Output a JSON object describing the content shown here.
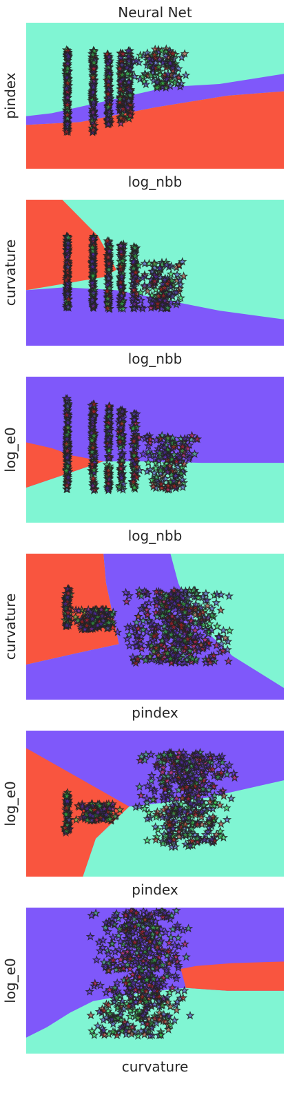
{
  "title": "Neural Net",
  "colors": {
    "class_red": "#f9553f",
    "class_violet": "#7f58fa",
    "class_aqua": "#80f5d3",
    "marker_edge": "#222222",
    "dot_green": "#37d24b",
    "dot_red": "#d21e1e",
    "dot_violet": "#5a28be"
  },
  "chart_data": [
    {
      "type": "scatter",
      "xlabel": "log_nbb",
      "ylabel": "pindex",
      "marker": "star",
      "ticks_visible": false,
      "regions": [
        {
          "class": "violet",
          "polygon": [
            [
              0,
              0.3
            ],
            [
              0.21,
              0.32
            ],
            [
              0.5,
              0.42
            ],
            [
              0.78,
              0.5
            ],
            [
              1,
              0.53
            ],
            [
              1,
              0.65
            ],
            [
              0.75,
              0.58
            ],
            [
              0.55,
              0.56
            ],
            [
              0.3,
              0.46
            ],
            [
              0.1,
              0.38
            ],
            [
              0,
              0.36
            ]
          ]
        },
        {
          "class": "red",
          "polygon": [
            [
              0,
              0
            ],
            [
              1,
              0
            ],
            [
              1,
              0.53
            ],
            [
              0.78,
              0.5
            ],
            [
              0.5,
              0.42
            ],
            [
              0.21,
              0.32
            ],
            [
              0,
              0.3
            ]
          ]
        }
      ],
      "region_background": "aqua",
      "clusters": [
        {
          "x": 0.16,
          "spread_x": 0.005,
          "y_range": [
            0.25,
            0.82
          ],
          "count": 130
        },
        {
          "x": 0.26,
          "spread_x": 0.006,
          "y_range": [
            0.25,
            0.81
          ],
          "count": 110
        },
        {
          "x": 0.32,
          "spread_x": 0.006,
          "y_range": [
            0.3,
            0.8
          ],
          "count": 100
        },
        {
          "x": 0.37,
          "spread_x": 0.008,
          "y_range": [
            0.3,
            0.8
          ],
          "count": 90
        },
        {
          "x": 0.4,
          "spread_x": 0.008,
          "y_range": [
            0.34,
            0.81
          ],
          "count": 80
        },
        {
          "x": 0.52,
          "spread_x": 0.09,
          "y_range": [
            0.55,
            0.82
          ],
          "count": 120
        }
      ]
    },
    {
      "type": "scatter",
      "xlabel": "log_nbb",
      "ylabel": "curvature",
      "marker": "star",
      "ticks_visible": false,
      "regions": [
        {
          "class": "red",
          "polygon": [
            [
              0,
              1
            ],
            [
              0.14,
              1
            ],
            [
              0.28,
              0.75
            ],
            [
              0.35,
              0.52
            ],
            [
              0.3,
              0.47
            ],
            [
              0,
              0.38
            ]
          ]
        },
        {
          "class": "violet",
          "polygon": [
            [
              0,
              0
            ],
            [
              1,
              0
            ],
            [
              1,
              0.18
            ],
            [
              0.75,
              0.24
            ],
            [
              0.55,
              0.31
            ],
            [
              0.35,
              0.38
            ],
            [
              0.15,
              0.4
            ],
            [
              0,
              0.38
            ]
          ]
        }
      ],
      "region_background": "aqua",
      "clusters": [
        {
          "x": 0.16,
          "spread_x": 0.005,
          "y_range": [
            0.25,
            0.75
          ],
          "count": 110
        },
        {
          "x": 0.26,
          "spread_x": 0.006,
          "y_range": [
            0.25,
            0.75
          ],
          "count": 100
        },
        {
          "x": 0.32,
          "spread_x": 0.006,
          "y_range": [
            0.25,
            0.73
          ],
          "count": 90
        },
        {
          "x": 0.37,
          "spread_x": 0.008,
          "y_range": [
            0.25,
            0.7
          ],
          "count": 80
        },
        {
          "x": 0.42,
          "spread_x": 0.008,
          "y_range": [
            0.25,
            0.68
          ],
          "count": 70
        },
        {
          "x": 0.52,
          "spread_x": 0.09,
          "y_range": [
            0.25,
            0.58
          ],
          "count": 140
        }
      ]
    },
    {
      "type": "scatter",
      "xlabel": "log_nbb",
      "ylabel": "log_e0",
      "marker": "star",
      "ticks_visible": false,
      "regions": [
        {
          "class": "red",
          "polygon": [
            [
              0,
              0.55
            ],
            [
              0.1,
              0.51
            ],
            [
              0.18,
              0.46
            ],
            [
              0.3,
              0.42
            ],
            [
              0,
              0.24
            ]
          ]
        }
      ],
      "region_background_top": "violet",
      "region_background_bottom": "aqua",
      "boundary": [
        [
          0,
          0.24
        ],
        [
          0.3,
          0.42
        ],
        [
          0.45,
          0.42
        ],
        [
          0.68,
          0.41
        ],
        [
          1,
          0.41
        ]
      ],
      "clusters": [
        {
          "x": 0.16,
          "spread_x": 0.005,
          "y_range": [
            0.22,
            0.85
          ],
          "count": 130
        },
        {
          "x": 0.26,
          "spread_x": 0.006,
          "y_range": [
            0.22,
            0.83
          ],
          "count": 110
        },
        {
          "x": 0.32,
          "spread_x": 0.006,
          "y_range": [
            0.22,
            0.8
          ],
          "count": 100
        },
        {
          "x": 0.37,
          "spread_x": 0.008,
          "y_range": [
            0.22,
            0.78
          ],
          "count": 90
        },
        {
          "x": 0.42,
          "spread_x": 0.008,
          "y_range": [
            0.22,
            0.75
          ],
          "count": 70
        },
        {
          "x": 0.55,
          "spread_x": 0.1,
          "y_range": [
            0.22,
            0.6
          ],
          "count": 160
        }
      ]
    },
    {
      "type": "scatter",
      "xlabel": "pindex",
      "ylabel": "curvature",
      "marker": "star",
      "ticks_visible": false,
      "regions": [
        {
          "class": "red",
          "polygon": [
            [
              0,
              1
            ],
            [
              0.3,
              1
            ],
            [
              0.31,
              0.8
            ],
            [
              0.34,
              0.55
            ],
            [
              0.36,
              0.38
            ],
            [
              0.2,
              0.32
            ],
            [
              0,
              0.24
            ]
          ]
        },
        {
          "class": "violet",
          "polygon": [
            [
              0.3,
              1
            ],
            [
              0.56,
              1
            ],
            [
              0.59,
              0.8
            ],
            [
              0.65,
              0.55
            ],
            [
              0.8,
              0.3
            ],
            [
              1,
              0.08
            ],
            [
              1,
              0
            ],
            [
              0,
              0
            ],
            [
              0,
              0.24
            ],
            [
              0.2,
              0.32
            ],
            [
              0.36,
              0.38
            ],
            [
              0.34,
              0.55
            ],
            [
              0.31,
              0.8
            ]
          ]
        }
      ],
      "region_background": "aqua",
      "clusters": [
        {
          "x": 0.16,
          "spread_x": 0.01,
          "y_range": [
            0.5,
            0.76
          ],
          "count": 70
        },
        {
          "x": 0.27,
          "spread_x": 0.08,
          "y_range": [
            0.48,
            0.62
          ],
          "count": 140
        },
        {
          "x": 0.58,
          "spread_x": 0.18,
          "y_range": [
            0.25,
            0.75
          ],
          "count": 420
        }
      ]
    },
    {
      "type": "scatter",
      "xlabel": "pindex",
      "ylabel": "log_e0",
      "marker": "star",
      "ticks_visible": false,
      "regions": [
        {
          "class": "red",
          "polygon": [
            [
              0,
              0.88
            ],
            [
              0.2,
              0.68
            ],
            [
              0.4,
              0.48
            ],
            [
              0.27,
              0.26
            ],
            [
              0.22,
              0
            ],
            [
              0,
              0
            ]
          ]
        },
        {
          "class": "aqua",
          "polygon": [
            [
              0.22,
              0
            ],
            [
              1,
              0
            ],
            [
              1,
              0.66
            ],
            [
              0.7,
              0.54
            ],
            [
              0.4,
              0.48
            ],
            [
              0.27,
              0.26
            ]
          ]
        }
      ],
      "region_background": "violet",
      "clusters": [
        {
          "x": 0.16,
          "spread_x": 0.01,
          "y_range": [
            0.3,
            0.58
          ],
          "count": 70
        },
        {
          "x": 0.28,
          "spread_x": 0.08,
          "y_range": [
            0.38,
            0.5
          ],
          "count": 120
        },
        {
          "x": 0.62,
          "spread_x": 0.16,
          "y_range": [
            0.2,
            0.85
          ],
          "count": 420
        }
      ]
    },
    {
      "type": "scatter",
      "xlabel": "curvature",
      "ylabel": "log_e0",
      "marker": "star",
      "ticks_visible": false,
      "regions": [
        {
          "class": "red",
          "polygon": [
            [
              0.6,
              0.58
            ],
            [
              0.66,
              0.6
            ],
            [
              0.8,
              0.62
            ],
            [
              1,
              0.63
            ],
            [
              1,
              0.43
            ],
            [
              0.78,
              0.43
            ],
            [
              0.62,
              0.45
            ]
          ]
        }
      ],
      "region_background_top": "violet",
      "region_background_bottom": "aqua",
      "boundary": [
        [
          0,
          0.11
        ],
        [
          0.08,
          0.18
        ],
        [
          0.17,
          0.28
        ],
        [
          0.26,
          0.36
        ],
        [
          0.45,
          0.42
        ],
        [
          0.62,
          0.45
        ],
        [
          0.78,
          0.43
        ],
        [
          1,
          0.43
        ]
      ],
      "clusters": [
        {
          "x": 0.44,
          "spread_x": 0.17,
          "y_range": [
            0.12,
            0.98
          ],
          "count": 520
        }
      ]
    }
  ]
}
